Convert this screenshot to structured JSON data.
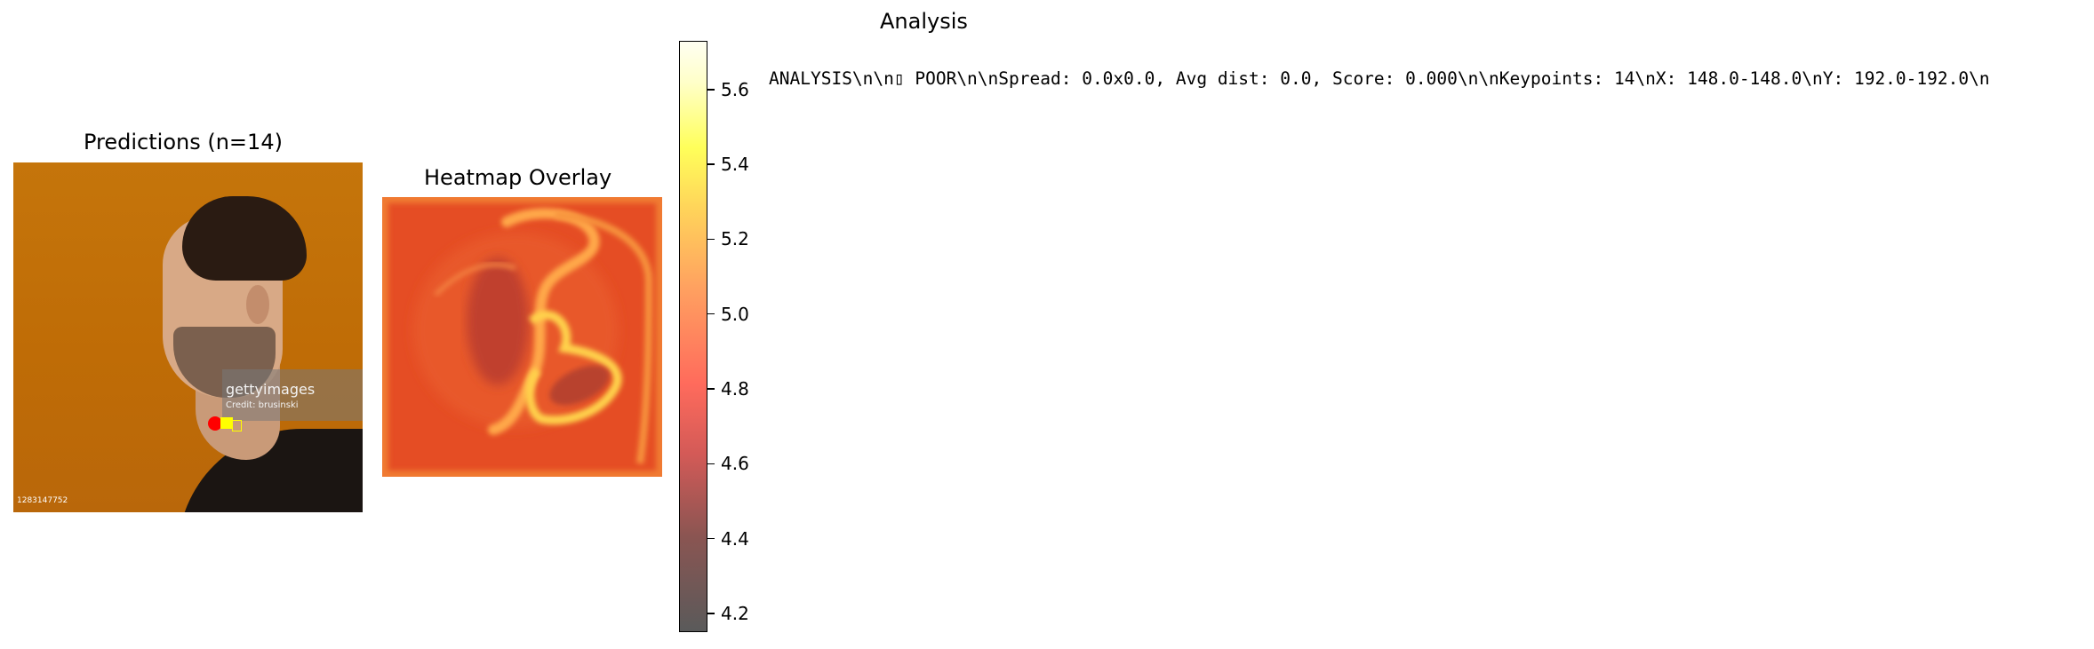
{
  "panels": {
    "predictions_title": "Predictions (n=14)",
    "heatmap_title": "Heatmap Overlay",
    "analysis_title": "Analysis"
  },
  "photo": {
    "watermark_logo": "gettyimages",
    "watermark_credit": "Credit: brusinski",
    "image_id": "1283147752"
  },
  "analysis_text": "ANALYSIS\\n\\n▯ POOR\\n\\nSpread: 0.0x0.0, Avg dist: 0.0, Score: 0.000\\n\\nKeypoints: 14\\nX: 148.0-148.0\\nY: 192.0-192.0\\n",
  "colors": {
    "background": "#ffffff",
    "keypoint_primary": "#ff0000",
    "keypoint_secondary": "#ffff00"
  },
  "chart_data": {
    "type": "heatmap",
    "title": "Heatmap Overlay",
    "colorbar": {
      "min": 4.15,
      "max": 5.73,
      "ticks": [
        "4.2",
        "4.4",
        "4.6",
        "4.8",
        "5.0",
        "5.2",
        "5.4",
        "5.6"
      ],
      "tick_values": [
        4.2,
        4.4,
        4.6,
        4.8,
        5.0,
        5.2,
        5.4,
        5.6
      ],
      "colormap": "hot-alpha"
    }
  }
}
